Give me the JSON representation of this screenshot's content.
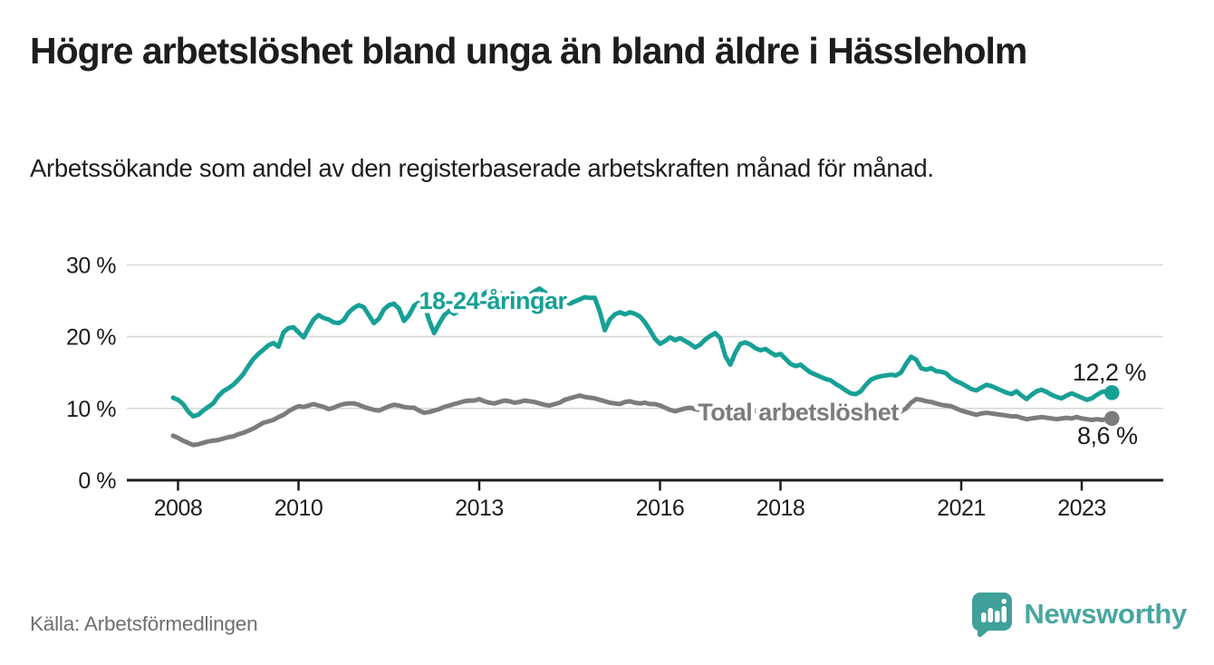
{
  "header": {
    "title": "Högre arbetslöshet bland unga än bland äldre i Hässleholm",
    "subtitle": "Arbetssökande som andel av den registerbaserade arbetskraften månad för månad."
  },
  "footer": {
    "source": "Källa: Arbetsförmedlingen",
    "brand": "Newsworthy"
  },
  "colors": {
    "accent_teal": "#17a096",
    "series_gray": "#7c7c7c",
    "axis": "#1d1d1b",
    "grid": "#d9d9d9",
    "annotation_text": "#1d1d1b",
    "brand_teal": "#49a6a0",
    "brand_icon_teal": "#40a09a",
    "source_gray": "#6f6f6f"
  },
  "chart_data": {
    "type": "line",
    "title": "Högre arbetslöshet bland unga än bland äldre i Hässleholm",
    "subtitle": "Arbetssökande som andel av den registerbaserade arbetskraften månad för månad.",
    "x_start": "2008-01",
    "x_end": "2023-08",
    "x_interval": "monthly",
    "x_axis": {
      "ticks": [
        2008,
        2010,
        2013,
        2016,
        2018,
        2021,
        2023
      ]
    },
    "y_axis": {
      "unit": "%",
      "range": [
        0,
        32
      ],
      "ticks": [
        {
          "value": 0,
          "label": "0 %"
        },
        {
          "value": 10,
          "label": "10 %"
        },
        {
          "value": 20,
          "label": "20 %"
        },
        {
          "value": 30,
          "label": "30 %"
        }
      ]
    },
    "grid": "horizontal",
    "legend": "inline-labels",
    "series": [
      {
        "name": "18-24-åringar",
        "color": "#17a096",
        "end_label": "12,2 %",
        "end_value": 12.2,
        "values": [
          11.5,
          11.2,
          10.6,
          9.6,
          8.9,
          9.1,
          9.7,
          10.2,
          10.7,
          11.7,
          12.4,
          12.8,
          13.3,
          14.0,
          14.8,
          15.9,
          16.9,
          17.6,
          18.2,
          18.8,
          19.1,
          18.6,
          20.6,
          21.2,
          21.3,
          20.6,
          19.9,
          21.2,
          22.4,
          23.0,
          22.6,
          22.4,
          22.0,
          21.9,
          22.3,
          23.4,
          24.0,
          24.4,
          24.1,
          23.0,
          21.9,
          22.5,
          23.8,
          24.4,
          24.6,
          23.9,
          22.2,
          23.0,
          24.3,
          24.8,
          24.6,
          22.3,
          20.5,
          21.8,
          23.0,
          23.6,
          23.2,
          23.7,
          24.0,
          24.2,
          24.5,
          25.2,
          26.0,
          26.5,
          26.8,
          26.2,
          25.6,
          25.9,
          26.3,
          25.8,
          25.4,
          25.8,
          26.3,
          26.7,
          26.2,
          25.6,
          25.2,
          24.8,
          25.0,
          24.6,
          24.9,
          25.2,
          25.5,
          25.4,
          25.4,
          23.5,
          20.9,
          22.4,
          23.1,
          23.4,
          23.1,
          23.4,
          23.2,
          22.8,
          22.0,
          20.9,
          19.7,
          19.0,
          19.4,
          19.9,
          19.5,
          19.8,
          19.4,
          19.0,
          18.5,
          18.9,
          19.6,
          20.1,
          20.5,
          19.8,
          17.3,
          16.1,
          17.8,
          19.0,
          19.2,
          18.9,
          18.4,
          18.1,
          18.3,
          17.8,
          17.4,
          17.6,
          16.9,
          16.2,
          15.9,
          16.1,
          15.5,
          15.0,
          14.7,
          14.4,
          14.1,
          13.9,
          13.4,
          13.0,
          12.5,
          12.1,
          12.0,
          12.4,
          13.3,
          14.0,
          14.3,
          14.5,
          14.6,
          14.7,
          14.6,
          15.0,
          16.2,
          17.2,
          16.8,
          15.6,
          15.4,
          15.6,
          15.2,
          15.1,
          14.9,
          14.2,
          13.8,
          13.5,
          13.1,
          12.7,
          12.5,
          12.9,
          13.3,
          13.1,
          12.8,
          12.5,
          12.2,
          12.0,
          12.4,
          11.8,
          11.3,
          11.9,
          12.4,
          12.6,
          12.3,
          11.9,
          11.6,
          11.4,
          11.8,
          12.1,
          11.8,
          11.5,
          11.2,
          11.4,
          11.9,
          12.3,
          12.4,
          12.2
        ]
      },
      {
        "name": "Total arbetslöshet",
        "color": "#7c7c7c",
        "end_label": "8,6 %",
        "end_value": 8.6,
        "values": [
          6.2,
          5.9,
          5.5,
          5.2,
          4.9,
          5.0,
          5.2,
          5.4,
          5.5,
          5.6,
          5.8,
          6.0,
          6.1,
          6.4,
          6.6,
          6.9,
          7.2,
          7.6,
          8.0,
          8.2,
          8.4,
          8.8,
          9.1,
          9.6,
          10.0,
          10.3,
          10.2,
          10.4,
          10.6,
          10.4,
          10.2,
          9.9,
          10.1,
          10.4,
          10.6,
          10.7,
          10.7,
          10.5,
          10.2,
          10.0,
          9.8,
          9.7,
          10.0,
          10.3,
          10.5,
          10.4,
          10.2,
          10.1,
          10.1,
          9.7,
          9.4,
          9.5,
          9.7,
          9.9,
          10.2,
          10.4,
          10.6,
          10.8,
          11.0,
          11.1,
          11.1,
          11.3,
          11.0,
          10.8,
          10.7,
          10.9,
          11.1,
          11.0,
          10.8,
          10.9,
          11.1,
          11.0,
          10.9,
          10.7,
          10.5,
          10.4,
          10.6,
          10.8,
          11.2,
          11.4,
          11.6,
          11.8,
          11.6,
          11.5,
          11.4,
          11.2,
          11.0,
          10.8,
          10.7,
          10.6,
          10.9,
          11.0,
          10.8,
          10.7,
          10.8,
          10.6,
          10.6,
          10.4,
          10.1,
          9.8,
          9.6,
          9.8,
          10.0,
          10.1,
          9.9,
          9.8,
          10.0,
          9.9,
          9.9,
          9.6,
          9.4,
          9.3,
          9.5,
          9.7,
          9.8,
          9.7,
          9.6,
          9.7,
          9.8,
          9.7,
          9.7,
          9.5,
          9.2,
          9.1,
          9.3,
          9.4,
          9.5,
          9.4,
          9.3,
          9.4,
          9.5,
          9.4,
          9.4,
          9.2,
          9.0,
          8.9,
          9.0,
          9.2,
          9.4,
          9.5,
          9.4,
          9.3,
          9.4,
          9.5,
          9.5,
          9.6,
          10.0,
          10.8,
          11.3,
          11.2,
          11.0,
          10.9,
          10.7,
          10.5,
          10.4,
          10.3,
          10.0,
          9.7,
          9.5,
          9.3,
          9.1,
          9.3,
          9.4,
          9.3,
          9.2,
          9.1,
          9.0,
          8.9,
          8.9,
          8.7,
          8.5,
          8.6,
          8.7,
          8.8,
          8.7,
          8.6,
          8.5,
          8.6,
          8.7,
          8.6,
          8.8,
          8.6,
          8.5,
          8.4,
          8.5,
          8.4,
          8.5,
          8.6
        ]
      }
    ]
  }
}
